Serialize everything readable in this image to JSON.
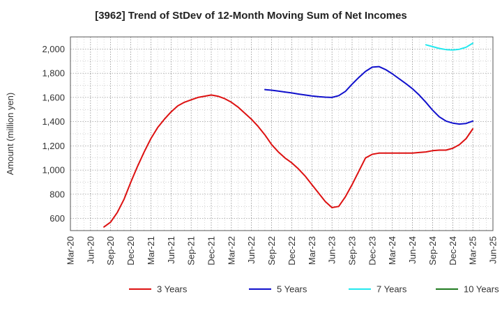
{
  "chart_data": {
    "type": "line",
    "title": "[3962]  Trend of StDev of 12-Month Moving Sum of Net Incomes",
    "ylabel": "Amount (million yen)",
    "xlabel": "",
    "ylim": [
      500,
      2100
    ],
    "yticks": [
      600,
      800,
      1000,
      1200,
      1400,
      1600,
      1800,
      2000
    ],
    "ytick_labels": [
      "600",
      "800",
      "1,000",
      "1,200",
      "1,400",
      "1,600",
      "1,800",
      "2,000"
    ],
    "xlim": [
      "2020-03",
      "2025-06"
    ],
    "xticks": [
      "2020-03",
      "2020-06",
      "2020-09",
      "2020-12",
      "2021-03",
      "2021-06",
      "2021-09",
      "2021-12",
      "2022-03",
      "2022-06",
      "2022-09",
      "2022-12",
      "2023-03",
      "2023-06",
      "2023-09",
      "2023-12",
      "2024-03",
      "2024-06",
      "2024-09",
      "2024-12",
      "2025-03",
      "2025-06"
    ],
    "xtick_labels": [
      "Mar-20",
      "Jun-20",
      "Sep-20",
      "Dec-20",
      "Mar-21",
      "Jun-21",
      "Sep-21",
      "Dec-21",
      "Mar-22",
      "Jun-22",
      "Sep-22",
      "Dec-22",
      "Mar-23",
      "Jun-23",
      "Sep-23",
      "Dec-23",
      "Mar-24",
      "Jun-24",
      "Sep-24",
      "Dec-24",
      "Mar-25",
      "Jun-25"
    ],
    "grid": true,
    "legend_position": "bottom",
    "series": [
      {
        "name": "3 Years",
        "color": "#dd1111",
        "x": [
          "2020-08",
          "2020-09",
          "2020-10",
          "2020-11",
          "2020-12",
          "2021-01",
          "2021-02",
          "2021-03",
          "2021-04",
          "2021-05",
          "2021-06",
          "2021-07",
          "2021-08",
          "2021-09",
          "2021-10",
          "2021-11",
          "2021-12",
          "2022-01",
          "2022-02",
          "2022-03",
          "2022-04",
          "2022-05",
          "2022-06",
          "2022-07",
          "2022-08",
          "2022-09",
          "2022-10",
          "2022-11",
          "2022-12",
          "2023-01",
          "2023-02",
          "2023-03",
          "2023-04",
          "2023-05",
          "2023-06",
          "2023-07",
          "2023-08",
          "2023-09",
          "2023-10",
          "2023-11",
          "2023-12",
          "2024-01",
          "2024-02",
          "2024-03",
          "2024-04",
          "2024-05",
          "2024-06",
          "2024-07",
          "2024-08",
          "2024-09",
          "2024-10",
          "2024-11",
          "2024-12",
          "2025-01",
          "2025-02",
          "2025-03"
        ],
        "values": [
          530,
          570,
          650,
          760,
          900,
          1030,
          1150,
          1260,
          1350,
          1420,
          1480,
          1530,
          1560,
          1580,
          1600,
          1610,
          1620,
          1610,
          1590,
          1560,
          1520,
          1470,
          1420,
          1360,
          1290,
          1210,
          1150,
          1100,
          1060,
          1010,
          950,
          880,
          810,
          740,
          690,
          700,
          780,
          880,
          990,
          1100,
          1130,
          1140,
          1140,
          1140,
          1140,
          1140,
          1140,
          1145,
          1150,
          1160,
          1165,
          1165,
          1180,
          1210,
          1260,
          1340
        ]
      },
      {
        "name": "5 Years",
        "color": "#1010cc",
        "x": [
          "2022-08",
          "2022-09",
          "2022-10",
          "2022-11",
          "2022-12",
          "2023-01",
          "2023-02",
          "2023-03",
          "2023-04",
          "2023-05",
          "2023-06",
          "2023-07",
          "2023-08",
          "2023-09",
          "2023-10",
          "2023-11",
          "2023-12",
          "2024-01",
          "2024-02",
          "2024-03",
          "2024-04",
          "2024-05",
          "2024-06",
          "2024-07",
          "2024-08",
          "2024-09",
          "2024-10",
          "2024-11",
          "2024-12",
          "2025-01",
          "2025-02",
          "2025-03"
        ],
        "values": [
          1665,
          1660,
          1652,
          1645,
          1637,
          1628,
          1620,
          1612,
          1606,
          1602,
          1600,
          1615,
          1650,
          1710,
          1765,
          1815,
          1850,
          1855,
          1830,
          1795,
          1755,
          1715,
          1672,
          1620,
          1560,
          1495,
          1440,
          1405,
          1388,
          1380,
          1385,
          1405
        ]
      },
      {
        "name": "7 Years",
        "color": "#22e8ee",
        "x": [
          "2024-08",
          "2024-09",
          "2024-10",
          "2024-11",
          "2024-12",
          "2025-01",
          "2025-02",
          "2025-03"
        ],
        "values": [
          2035,
          2020,
          2005,
          1995,
          1992,
          1998,
          2015,
          2048
        ]
      },
      {
        "name": "10 Years",
        "color": "#1f7a1f",
        "x": [],
        "values": []
      }
    ]
  }
}
